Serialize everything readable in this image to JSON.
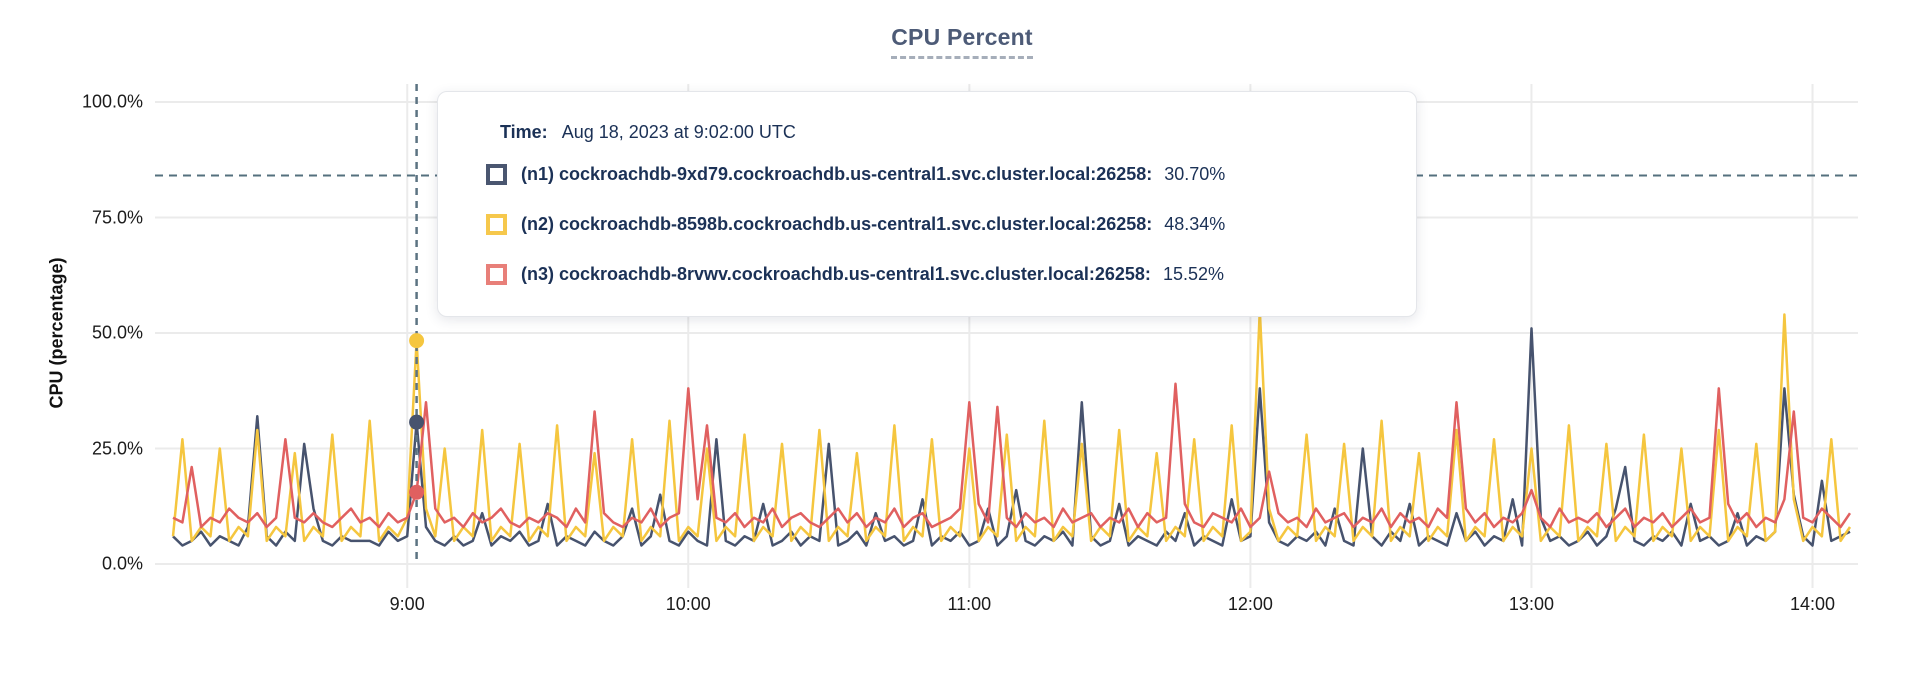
{
  "title": "CPU Percent",
  "y_axis": {
    "title": "CPU (percentage)"
  },
  "tooltip": {
    "time_label": "Time:",
    "time_value": "Aug 18, 2023 at 9:02:00 UTC",
    "rows": [
      {
        "id": "n1",
        "label": "(n1) cockroachdb-9xd79.cockroachdb.us-central1.svc.cluster.local:26258:",
        "value": "30.70%",
        "swatch_color": "#4a5670"
      },
      {
        "id": "n2",
        "label": "(n2) cockroachdb-8598b.cockroachdb.us-central1.svc.cluster.local:26258:",
        "value": "48.34%",
        "swatch_color": "#f6c84c"
      },
      {
        "id": "n3",
        "label": "(n3) cockroachdb-8rvwv.cockroachdb.us-central1.svc.cluster.local:26258:",
        "value": "15.52%",
        "swatch_color": "#e87f79"
      }
    ]
  },
  "colors": {
    "grid": "#ebebeb",
    "guide_dash": "#54707e",
    "hover_dash": "#5c7382",
    "title_text": "#4d5b77",
    "tooltip_text": "#1b3156"
  },
  "chart_data": {
    "type": "line",
    "title": "CPU Percent",
    "xlabel": "",
    "ylabel": "CPU (percentage)",
    "ylim": [
      0,
      100
    ],
    "grid": true,
    "legend_position": "tooltip",
    "y_ticks": [
      {
        "value": 100,
        "label": "100.0%"
      },
      {
        "value": 75,
        "label": "75.0%"
      },
      {
        "value": 50,
        "label": "50.0%"
      },
      {
        "value": 25,
        "label": "25.0%"
      },
      {
        "value": 0,
        "label": "0.0%"
      }
    ],
    "x_ticks": [
      {
        "minutes": 540,
        "label": "9:00"
      },
      {
        "minutes": 600,
        "label": "10:00"
      },
      {
        "minutes": 660,
        "label": "11:00"
      },
      {
        "minutes": 720,
        "label": "12:00"
      },
      {
        "minutes": 780,
        "label": "13:00"
      },
      {
        "minutes": 840,
        "label": "14:00"
      }
    ],
    "x_range_minutes": [
      490,
      848
    ],
    "step_minutes": 2,
    "threshold_percent": 84.1,
    "hover": {
      "minutes": 542,
      "time_text": "Aug 18, 2023 at 9:02:00 UTC",
      "points": [
        {
          "series": "n1",
          "percent": 30.7
        },
        {
          "series": "n2",
          "percent": 48.34
        },
        {
          "series": "n3",
          "percent": 15.52
        }
      ]
    },
    "series": [
      {
        "id": "n1",
        "name": "cockroachdb-9xd79.cockroachdb.us-central1.svc.cluster.local:26258",
        "color": "#47536e",
        "values": [
          6,
          4,
          5,
          7,
          4,
          6,
          5,
          4,
          8,
          32,
          6,
          4,
          7,
          5,
          26,
          12,
          5,
          4,
          6,
          5,
          5,
          5,
          4,
          7,
          5,
          6,
          30.7,
          8,
          5,
          4,
          6,
          4,
          5,
          11,
          4,
          6,
          5,
          7,
          4,
          5,
          13,
          4,
          6,
          5,
          4,
          7,
          5,
          4,
          6,
          12,
          4,
          6,
          15,
          5,
          4,
          7,
          5,
          4,
          27,
          5,
          4,
          6,
          5,
          13,
          4,
          5,
          7,
          4,
          6,
          5,
          26,
          4,
          5,
          7,
          4,
          11,
          5,
          6,
          4,
          5,
          14,
          4,
          6,
          5,
          7,
          4,
          5,
          12,
          4,
          6,
          16,
          5,
          4,
          6,
          5,
          7,
          4,
          35,
          6,
          4,
          5,
          13,
          4,
          6,
          5,
          4,
          7,
          5,
          11,
          4,
          6,
          5,
          4,
          14,
          5,
          6,
          38,
          9,
          5,
          4,
          6,
          5,
          7,
          4,
          12,
          5,
          4,
          25,
          6,
          4,
          7,
          5,
          13,
          4,
          6,
          5,
          4,
          11,
          5,
          7,
          4,
          6,
          5,
          14,
          4,
          51,
          10,
          5,
          6,
          4,
          5,
          7,
          4,
          6,
          12,
          21,
          5,
          4,
          6,
          5,
          7,
          4,
          13,
          5,
          6,
          4,
          5,
          11,
          4,
          6,
          5,
          7,
          38,
          15,
          6,
          4,
          18,
          5,
          6,
          7
        ]
      },
      {
        "id": "n2",
        "name": "cockroachdb-8598b.cockroachdb.us-central1.svc.cluster.local:26258",
        "color": "#f5c63f",
        "values": [
          6,
          27,
          5,
          8,
          6,
          25,
          5,
          8,
          6,
          29,
          5,
          8,
          6,
          24,
          5,
          8,
          6,
          28,
          5,
          8,
          6,
          31,
          5,
          8,
          6,
          10,
          48.34,
          12,
          6,
          25,
          5,
          8,
          6,
          29,
          5,
          8,
          6,
          26,
          5,
          8,
          6,
          30,
          5,
          8,
          6,
          24,
          5,
          8,
          6,
          27,
          5,
          8,
          6,
          31,
          5,
          8,
          6,
          25,
          5,
          8,
          6,
          28,
          5,
          8,
          6,
          26,
          5,
          8,
          6,
          29,
          5,
          8,
          6,
          24,
          5,
          8,
          6,
          30,
          5,
          8,
          6,
          27,
          5,
          8,
          6,
          25,
          5,
          8,
          6,
          28,
          5,
          8,
          6,
          31,
          5,
          8,
          6,
          26,
          5,
          8,
          6,
          29,
          5,
          8,
          6,
          24,
          5,
          8,
          6,
          27,
          5,
          8,
          6,
          30,
          5,
          7,
          55,
          12,
          5,
          8,
          6,
          28,
          5,
          8,
          6,
          26,
          5,
          8,
          6,
          31,
          5,
          8,
          6,
          24,
          5,
          8,
          6,
          29,
          5,
          8,
          6,
          27,
          5,
          8,
          6,
          25,
          5,
          8,
          6,
          30,
          5,
          8,
          6,
          26,
          5,
          8,
          6,
          28,
          5,
          8,
          6,
          25,
          5,
          8,
          6,
          29,
          5,
          8,
          6,
          26,
          5,
          7,
          54,
          14,
          5,
          8,
          6,
          27,
          5,
          8
        ]
      },
      {
        "id": "n3",
        "name": "cockroachdb-8rvwv.cockroachdb.us-central1.svc.cluster.local:26258",
        "color": "#e06060",
        "values": [
          10,
          9,
          21,
          8,
          10,
          9,
          12,
          10,
          9,
          11,
          8,
          10,
          27,
          10,
          9,
          11,
          9,
          8,
          10,
          12,
          9,
          10,
          8,
          11,
          9,
          10,
          15.52,
          35,
          12,
          9,
          10,
          8,
          11,
          9,
          10,
          12,
          9,
          8,
          10,
          9,
          11,
          10,
          8,
          12,
          9,
          33,
          11,
          9,
          8,
          10,
          9,
          12,
          8,
          10,
          11,
          38,
          14,
          30,
          10,
          9,
          11,
          8,
          10,
          9,
          12,
          8,
          10,
          11,
          9,
          8,
          10,
          12,
          9,
          11,
          8,
          10,
          9,
          12,
          8,
          10,
          11,
          8,
          9,
          10,
          12,
          35,
          13,
          9,
          34,
          10,
          8,
          11,
          9,
          10,
          8,
          12,
          9,
          10,
          11,
          8,
          10,
          9,
          12,
          8,
          11,
          9,
          10,
          39,
          13,
          9,
          8,
          11,
          10,
          9,
          12,
          8,
          10,
          20,
          11,
          9,
          10,
          8,
          12,
          9,
          10,
          11,
          8,
          10,
          9,
          12,
          8,
          11,
          9,
          10,
          8,
          12,
          10,
          35,
          12,
          9,
          11,
          8,
          10,
          9,
          11,
          16,
          10,
          8,
          12,
          9,
          10,
          9,
          11,
          8,
          10,
          12,
          8,
          10,
          9,
          11,
          8,
          10,
          12,
          9,
          10,
          38,
          13,
          9,
          11,
          8,
          10,
          9,
          14,
          33,
          10,
          9,
          12,
          10,
          8,
          11
        ]
      }
    ]
  }
}
